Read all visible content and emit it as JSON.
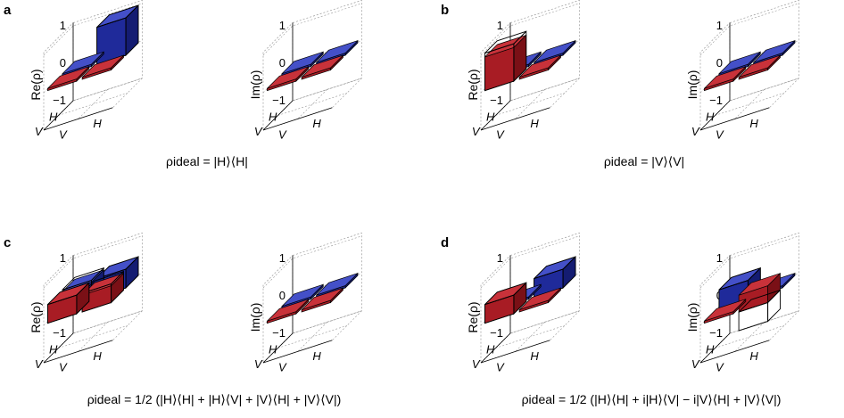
{
  "chart_data": [
    {
      "type": "bar3d",
      "panel_label": "a",
      "caption": "ρideal = |H⟩⟨H|",
      "rows": [
        "H",
        "V"
      ],
      "cols": [
        "V",
        "H"
      ],
      "zlim": [
        -1,
        1
      ],
      "zticks": [
        "1",
        "0",
        "−1"
      ],
      "plots": [
        {
          "ylabel": "Re(ρ)",
          "values": [
            [
              0.05,
              1.0
            ],
            [
              0.02,
              0.05
            ]
          ],
          "ideal": [
            [
              0,
              1
            ],
            [
              0,
              0
            ]
          ]
        },
        {
          "ylabel": "Im(ρ)",
          "values": [
            [
              0.03,
              0.02
            ],
            [
              0.02,
              0.03
            ]
          ],
          "ideal": [
            [
              0,
              0
            ],
            [
              0,
              0
            ]
          ]
        }
      ]
    },
    {
      "type": "bar3d",
      "panel_label": "b",
      "caption": "ρideal = |V⟩⟨V|",
      "rows": [
        "H",
        "V"
      ],
      "cols": [
        "V",
        "H"
      ],
      "zlim": [
        -1,
        1
      ],
      "zticks": [
        "1",
        "0",
        "−1"
      ],
      "plots": [
        {
          "ylabel": "Re(ρ)",
          "values": [
            [
              0.02,
              0.04
            ],
            [
              0.9,
              0.02
            ]
          ],
          "ideal": [
            [
              0,
              0
            ],
            [
              1,
              0
            ]
          ]
        },
        {
          "ylabel": "Im(ρ)",
          "values": [
            [
              0.03,
              0.02
            ],
            [
              0.02,
              0.03
            ]
          ],
          "ideal": [
            [
              0,
              0
            ],
            [
              0,
              0
            ]
          ]
        }
      ]
    },
    {
      "type": "bar3d",
      "panel_label": "c",
      "caption": "ρideal = 1/2 (|H⟩⟨H| + |H⟩⟨V| + |V⟩⟨H| + |V⟩⟨V|)",
      "rows": [
        "H",
        "V"
      ],
      "cols": [
        "V",
        "H"
      ],
      "zlim": [
        -1,
        1
      ],
      "zticks": [
        "1",
        "0",
        "−1"
      ],
      "plots": [
        {
          "ylabel": "Re(ρ)",
          "values": [
            [
              0.45,
              0.5
            ],
            [
              0.5,
              0.45
            ]
          ],
          "ideal": [
            [
              0.5,
              0.5
            ],
            [
              0.5,
              0.5
            ]
          ]
        },
        {
          "ylabel": "Im(ρ)",
          "values": [
            [
              0.03,
              0.02
            ],
            [
              0.02,
              0.03
            ]
          ],
          "ideal": [
            [
              0,
              0
            ],
            [
              0,
              0
            ]
          ]
        }
      ]
    },
    {
      "type": "bar3d",
      "panel_label": "d",
      "caption": "ρideal = 1/2 (|H⟩⟨H| + i|H⟩⟨V| − i|V⟩⟨H| + |V⟩⟨V|)",
      "rows": [
        "H",
        "V"
      ],
      "cols": [
        "V",
        "H"
      ],
      "zlim": [
        -1,
        1
      ],
      "zticks": [
        "1",
        "0",
        "−1"
      ],
      "plots": [
        {
          "ylabel": "Re(ρ)",
          "values": [
            [
              0.02,
              0.5
            ],
            [
              0.5,
              0.02
            ]
          ],
          "ideal": [
            [
              0,
              0.5
            ],
            [
              0.5,
              0
            ]
          ]
        },
        {
          "ylabel": "Im(ρ)",
          "values": [
            [
              0.5,
              0.02
            ],
            [
              0.02,
              0.45
            ]
          ],
          "ideal": [
            [
              0.5,
              0
            ],
            [
              0,
              -0.5
            ]
          ]
        }
      ]
    }
  ],
  "colors": {
    "blue_top": "#4450c8",
    "blue_front": "#1f2a9a",
    "blue_side": "#141c72",
    "red_top": "#c8323a",
    "red_front": "#a81c24",
    "red_side": "#7a1016",
    "edge": "#000000",
    "grid": "#9a9a9a"
  }
}
